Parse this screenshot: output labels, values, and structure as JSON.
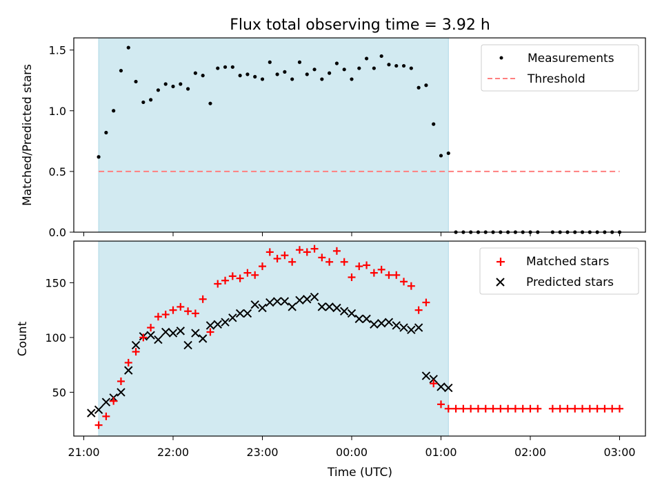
{
  "chart_data": [
    {
      "type": "scatter",
      "title": "Flux total observing time = 3.92 h",
      "ylabel": "Matched/Predicted stars",
      "xlabel": "",
      "ylim": [
        0,
        1.6
      ],
      "yticks": [
        0.0,
        0.5,
        1.0,
        1.5
      ],
      "ytick_labels": [
        "0.0",
        "0.5",
        "1.0",
        "1.5"
      ],
      "xlim": [
        "21:00",
        "03:00"
      ],
      "shaded_interval": [
        "21:10",
        "01:05"
      ],
      "shade_color": "#add8e6",
      "threshold": 0.5,
      "legend_position": "top-right",
      "series": [
        {
          "name": "Measurements",
          "marker": "dot",
          "color": "#000000",
          "x": [
            "21:10",
            "21:15",
            "21:20",
            "21:25",
            "21:30",
            "21:35",
            "21:40",
            "21:45",
            "21:50",
            "21:55",
            "22:00",
            "22:05",
            "22:10",
            "22:15",
            "22:20",
            "22:25",
            "22:30",
            "22:35",
            "22:40",
            "22:45",
            "22:50",
            "22:55",
            "23:00",
            "23:05",
            "23:10",
            "23:15",
            "23:20",
            "23:25",
            "23:30",
            "23:35",
            "23:40",
            "23:45",
            "23:50",
            "23:55",
            "00:00",
            "00:05",
            "00:10",
            "00:15",
            "00:20",
            "00:25",
            "00:30",
            "00:35",
            "00:40",
            "00:45",
            "00:50",
            "00:55",
            "01:00",
            "01:05",
            "01:10",
            "01:15",
            "01:20",
            "01:25",
            "01:30",
            "01:35",
            "01:40",
            "01:45",
            "01:50",
            "01:55",
            "02:00",
            "02:05",
            "02:15",
            "02:20",
            "02:25",
            "02:30",
            "02:35",
            "02:40",
            "02:45",
            "02:50",
            "02:55",
            "03:00"
          ],
          "y": [
            0.62,
            0.82,
            1.0,
            1.33,
            1.52,
            1.24,
            1.07,
            1.09,
            1.17,
            1.22,
            1.2,
            1.22,
            1.18,
            1.31,
            1.29,
            1.06,
            1.35,
            1.36,
            1.36,
            1.29,
            1.3,
            1.28,
            1.26,
            1.4,
            1.3,
            1.32,
            1.26,
            1.4,
            1.3,
            1.34,
            1.26,
            1.31,
            1.39,
            1.34,
            1.26,
            1.35,
            1.43,
            1.35,
            1.45,
            1.38,
            1.37,
            1.37,
            1.35,
            1.19,
            1.21,
            0.89,
            0.63,
            0.65,
            0,
            0,
            0,
            0,
            0,
            0,
            0,
            0,
            0,
            0,
            0,
            0,
            0,
            0,
            0,
            0,
            0,
            0,
            0,
            0,
            0,
            0
          ]
        },
        {
          "name": "Threshold",
          "marker": "dashed-line",
          "color": "#ff7f7f",
          "x": [
            "21:10",
            "03:00"
          ],
          "y": [
            0.5,
            0.5
          ]
        }
      ]
    },
    {
      "type": "scatter",
      "title": "",
      "ylabel": "Count",
      "xlabel": "Time (UTC)",
      "ylim": [
        10,
        188
      ],
      "yticks": [
        50,
        100,
        150
      ],
      "ytick_labels": [
        "50",
        "100",
        "150"
      ],
      "xlim": [
        "21:00",
        "03:00"
      ],
      "xticks": [
        "21:00",
        "22:00",
        "23:00",
        "00:00",
        "01:00",
        "02:00",
        "03:00"
      ],
      "shaded_interval": [
        "21:10",
        "01:05"
      ],
      "shade_color": "#add8e6",
      "legend_position": "top-right",
      "series": [
        {
          "name": "Matched stars",
          "marker": "plus",
          "color": "#ff0000",
          "x": [
            "21:10",
            "21:15",
            "21:20",
            "21:25",
            "21:30",
            "21:35",
            "21:40",
            "21:45",
            "21:50",
            "21:55",
            "22:00",
            "22:05",
            "22:10",
            "22:15",
            "22:20",
            "22:25",
            "22:30",
            "22:35",
            "22:40",
            "22:45",
            "22:50",
            "22:55",
            "23:00",
            "23:05",
            "23:10",
            "23:15",
            "23:20",
            "23:25",
            "23:30",
            "23:35",
            "23:40",
            "23:45",
            "23:50",
            "23:55",
            "00:00",
            "00:05",
            "00:10",
            "00:15",
            "00:20",
            "00:25",
            "00:30",
            "00:35",
            "00:40",
            "00:45",
            "00:50",
            "00:55",
            "01:00",
            "01:05",
            "01:10",
            "01:15",
            "01:20",
            "01:25",
            "01:30",
            "01:35",
            "01:40",
            "01:45",
            "01:50",
            "01:55",
            "02:00",
            "02:05",
            "02:15",
            "02:20",
            "02:25",
            "02:30",
            "02:35",
            "02:40",
            "02:45",
            "02:50",
            "02:55",
            "03:00"
          ],
          "y": [
            20,
            28,
            42,
            60,
            77,
            87,
            100,
            109,
            119,
            121,
            125,
            128,
            124,
            122,
            135,
            105,
            149,
            152,
            156,
            154,
            159,
            157,
            165,
            178,
            172,
            175,
            169,
            180,
            178,
            181,
            173,
            169,
            179,
            169,
            155,
            165,
            166,
            159,
            162,
            157,
            157,
            151,
            147,
            125,
            132,
            58,
            39,
            35,
            35,
            35,
            35,
            35,
            35,
            35,
            35,
            35,
            35,
            35,
            35,
            35,
            35,
            35,
            35,
            35,
            35,
            35,
            35,
            35,
            35,
            35
          ]
        },
        {
          "name": "Predicted stars",
          "marker": "x",
          "color": "#000000",
          "x": [
            "21:05",
            "21:10",
            "21:15",
            "21:20",
            "21:25",
            "21:30",
            "21:35",
            "21:40",
            "21:45",
            "21:50",
            "21:55",
            "22:00",
            "22:05",
            "22:10",
            "22:15",
            "22:20",
            "22:25",
            "22:30",
            "22:35",
            "22:40",
            "22:45",
            "22:50",
            "22:55",
            "23:00",
            "23:05",
            "23:10",
            "23:15",
            "23:20",
            "23:25",
            "23:30",
            "23:35",
            "23:40",
            "23:45",
            "23:50",
            "23:55",
            "00:00",
            "00:05",
            "00:10",
            "00:15",
            "00:20",
            "00:25",
            "00:30",
            "00:35",
            "00:40",
            "00:45",
            "00:50",
            "00:55",
            "01:00",
            "01:05"
          ],
          "y": [
            31,
            34,
            41,
            45,
            50,
            70,
            93,
            101,
            102,
            98,
            105,
            104,
            106,
            93,
            104,
            99,
            111,
            112,
            114,
            118,
            122,
            122,
            130,
            127,
            132,
            133,
            133,
            128,
            134,
            135,
            137,
            128,
            128,
            127,
            124,
            122,
            117,
            117,
            112,
            113,
            114,
            111,
            109,
            107,
            109,
            65,
            62,
            55,
            54
          ]
        }
      ]
    }
  ]
}
